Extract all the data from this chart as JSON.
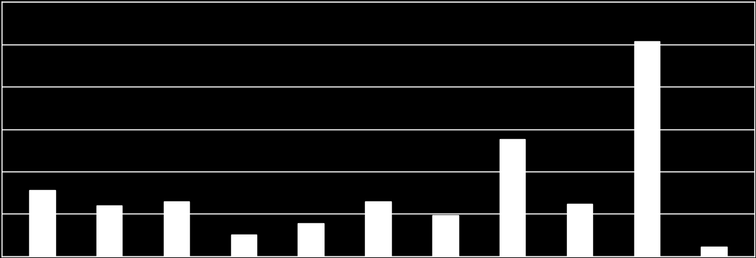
{
  "values": [
    1.7,
    1.3,
    1.4,
    0.55,
    0.85,
    1.4,
    1.05,
    3.0,
    1.35,
    5.5,
    0.25
  ],
  "bar_color": "#ffffff",
  "background_color": "#000000",
  "grid_color": "#ffffff",
  "ylim": [
    0,
    6.5
  ],
  "ytick_count": 7,
  "bar_width": 0.38,
  "figsize": [
    9.32,
    3.19
  ],
  "dpi": 100,
  "grid_linewidth": 1.0,
  "spine_linewidth": 1.0
}
